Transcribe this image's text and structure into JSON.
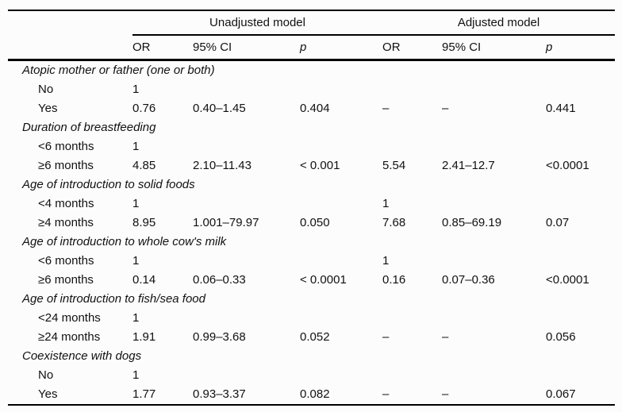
{
  "table": {
    "model_groups": [
      "Unadjusted model",
      "Adjusted model"
    ],
    "columns": [
      "OR",
      "95% CI",
      "p",
      "OR",
      "95% CI",
      "p"
    ],
    "sections": [
      {
        "title": "Atopic mother or father (one or both)",
        "rows": [
          {
            "label": "No",
            "cells": [
              "1",
              "",
              "",
              "",
              "",
              ""
            ]
          },
          {
            "label": "Yes",
            "cells": [
              "0.76",
              "0.40–1.45",
              "0.404",
              "–",
              "–",
              "0.441"
            ]
          }
        ]
      },
      {
        "title": "Duration of breastfeeding",
        "rows": [
          {
            "label": "<6 months",
            "cells": [
              "1",
              "",
              "",
              "",
              "",
              ""
            ]
          },
          {
            "label": "≥6 months",
            "cells": [
              "4.85",
              "2.10–11.43",
              "< 0.001",
              "5.54",
              "2.41–12.7",
              "<0.0001"
            ]
          }
        ]
      },
      {
        "title": "Age of introduction to solid foods",
        "rows": [
          {
            "label": "<4 months",
            "cells": [
              "1",
              "",
              "",
              "1",
              "",
              ""
            ]
          },
          {
            "label": "≥4 months",
            "cells": [
              "8.95",
              "1.001–79.97",
              "0.050",
              "7.68",
              "0.85–69.19",
              "0.07"
            ]
          }
        ]
      },
      {
        "title": "Age of introduction to whole cow's milk",
        "rows": [
          {
            "label": "<6 months",
            "cells": [
              "1",
              "",
              "",
              "1",
              "",
              ""
            ]
          },
          {
            "label": "≥6 months",
            "cells": [
              "0.14",
              "0.06–0.33",
              "< 0.0001",
              "0.16",
              "0.07–0.36",
              "<0.0001"
            ]
          }
        ]
      },
      {
        "title": "Age of introduction to fish/sea food",
        "rows": [
          {
            "label": "<24 months",
            "cells": [
              "1",
              "",
              "",
              "",
              "",
              ""
            ]
          },
          {
            "label": "≥24 months",
            "cells": [
              "1.91",
              "0.99–3.68",
              "0.052",
              "–",
              "–",
              "0.056"
            ]
          }
        ]
      },
      {
        "title": "Coexistence with dogs",
        "rows": [
          {
            "label": "No",
            "cells": [
              "1",
              "",
              "",
              "",
              "",
              ""
            ]
          },
          {
            "label": "Yes",
            "cells": [
              "1.77",
              "0.93–3.37",
              "0.082",
              "–",
              "–",
              "0.067"
            ]
          }
        ]
      }
    ],
    "colors": {
      "text": "#111111",
      "rules": "#000000",
      "background": "#fcfcfc"
    }
  }
}
